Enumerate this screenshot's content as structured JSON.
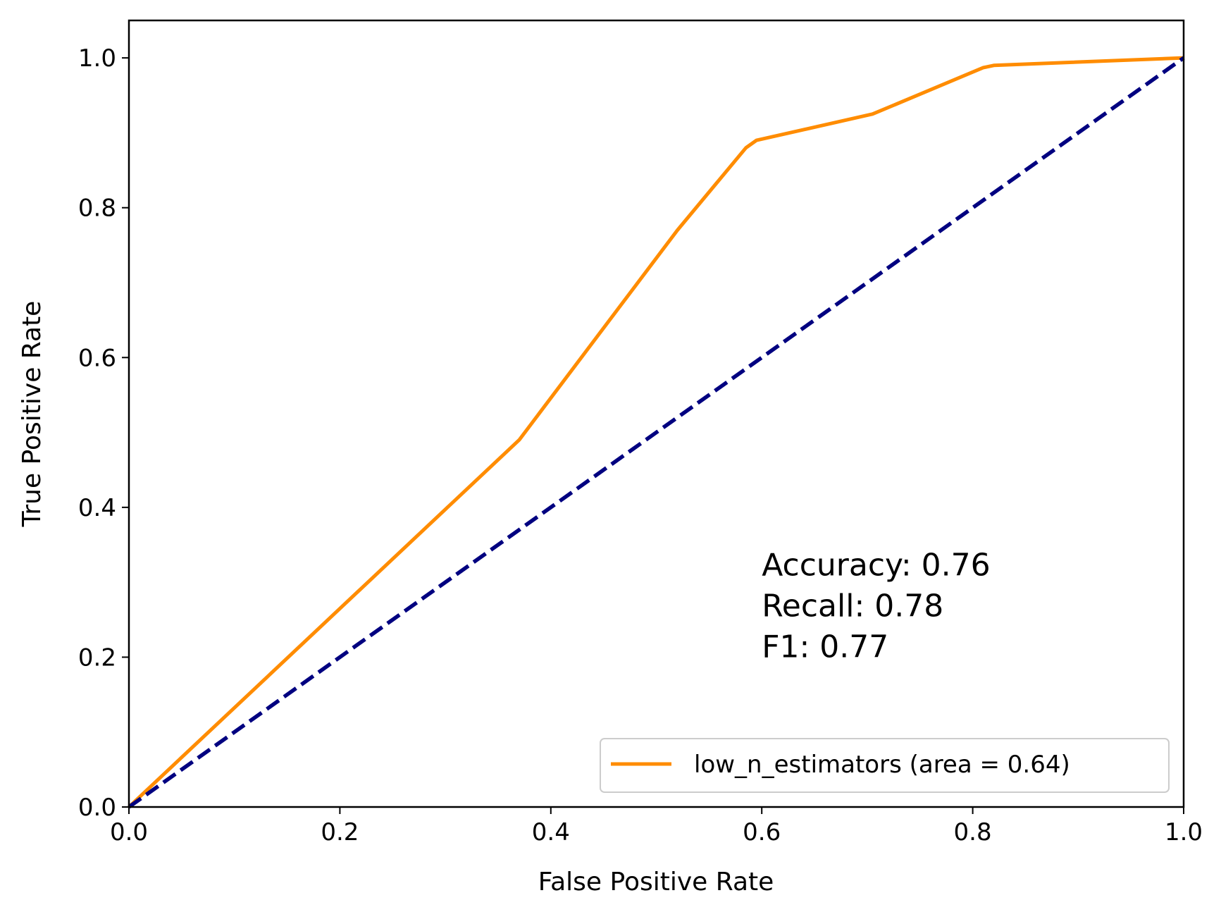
{
  "chart_data": {
    "type": "line",
    "title": "",
    "xlabel": "False Positive Rate",
    "ylabel": "True Positive Rate",
    "xlim": [
      0.0,
      1.0
    ],
    "ylim": [
      0.0,
      1.05
    ],
    "xticks": [
      "0.0",
      "0.2",
      "0.4",
      "0.6",
      "0.8",
      "1.0"
    ],
    "yticks": [
      "0.0",
      "0.2",
      "0.4",
      "0.6",
      "0.8",
      "1.0"
    ],
    "grid": false,
    "series": [
      {
        "name": "low_n_estimators (area = 0.64)",
        "color": "#ff8c00",
        "style": "solid",
        "x": [
          0.0,
          0.37,
          0.52,
          0.585,
          0.595,
          0.705,
          0.81,
          0.82,
          1.0
        ],
        "y": [
          0.0,
          0.49,
          0.77,
          0.88,
          0.89,
          0.925,
          0.987,
          0.99,
          1.0
        ]
      },
      {
        "name": "",
        "color": "#000080",
        "style": "dashed",
        "x": [
          0.0,
          1.0
        ],
        "y": [
          0.0,
          1.0
        ]
      }
    ],
    "legend": {
      "position": "lower right",
      "entries": [
        "low_n_estimators (area = 0.64)"
      ]
    },
    "annotation": {
      "lines": [
        "Accuracy: 0.76",
        "Recall: 0.78",
        "F1: 0.77"
      ],
      "x": 0.6,
      "y": 0.2
    }
  }
}
